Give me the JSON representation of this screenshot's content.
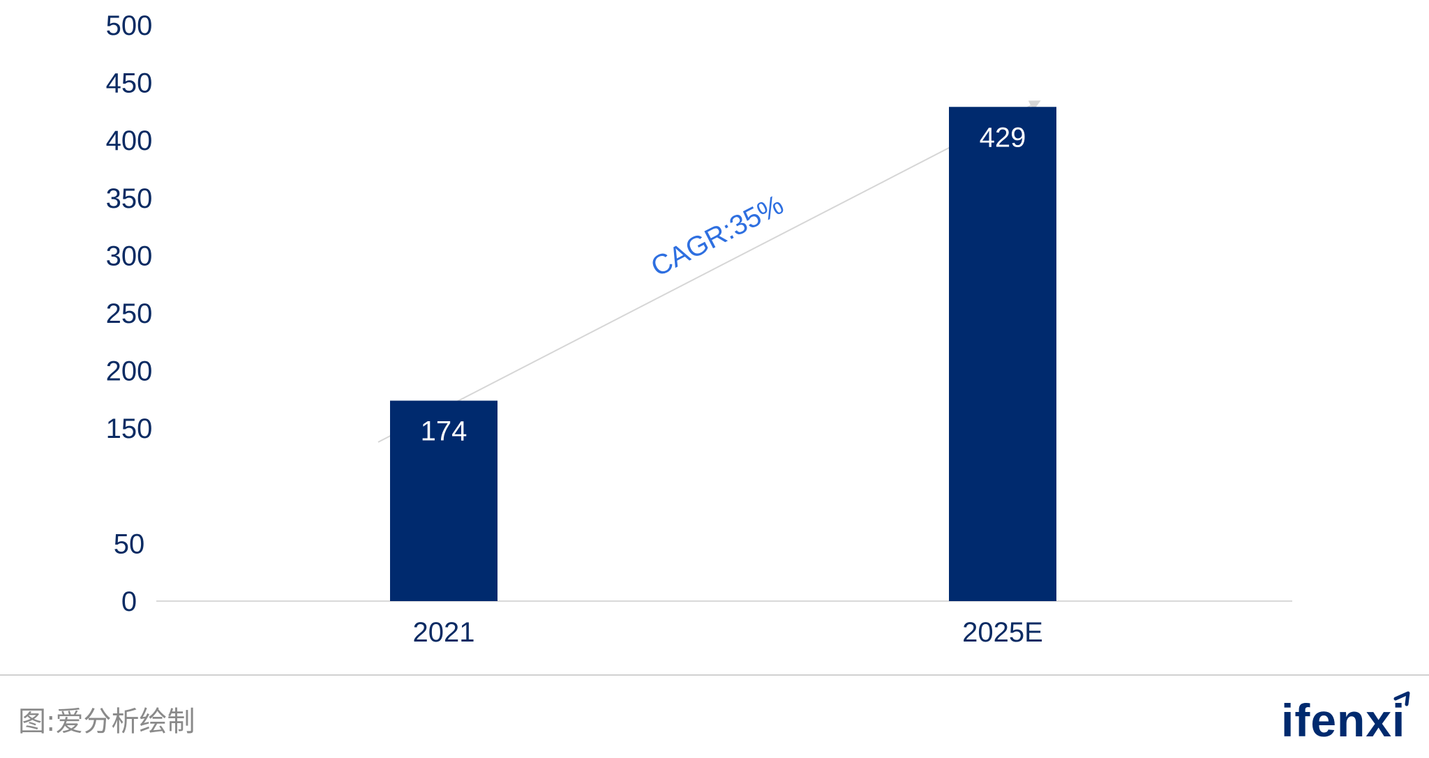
{
  "chart_data": {
    "type": "bar",
    "categories": [
      "2021",
      "2025E"
    ],
    "values": [
      174,
      429
    ],
    "data_labels": [
      "174",
      "429"
    ],
    "y_ticks": [
      0,
      50,
      150,
      200,
      250,
      300,
      350,
      400,
      450,
      500
    ],
    "ylim": [
      0,
      500
    ],
    "title": "",
    "xlabel": "",
    "ylabel": "",
    "annotation": "CAGR:35%",
    "grid": false,
    "colors": {
      "bar": "#002a6e",
      "tick_text": "#0b2b63",
      "annotation": "#2e6fe0",
      "arrow": "#d6d6d6",
      "axis": "#d9d9d9"
    }
  },
  "footer": {
    "source": "图:爱分析绘制",
    "logo_text": "ifenxi"
  }
}
